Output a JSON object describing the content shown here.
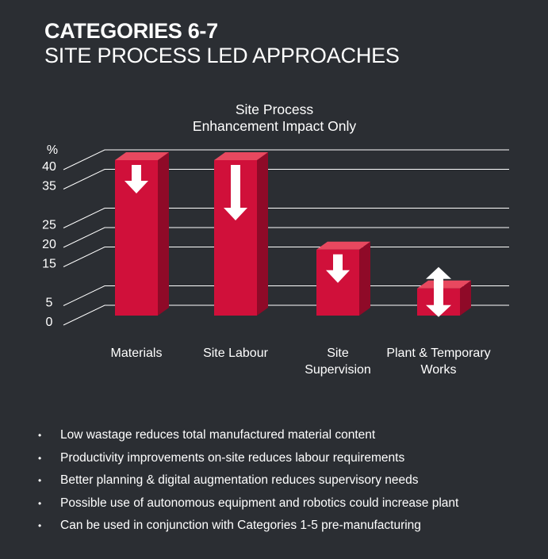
{
  "header": {
    "title": "CATEGORIES 6-7",
    "subtitle": "SITE PROCESS LED APPROACHES"
  },
  "chart_data": {
    "type": "bar",
    "title_lines": [
      "Site Process",
      "Enhancement Impact Only"
    ],
    "ylabel": "%",
    "yticks": [
      0,
      5,
      15,
      20,
      25,
      35,
      40
    ],
    "ylim": [
      0,
      45
    ],
    "grid": true,
    "categories": [
      [
        "Materials"
      ],
      [
        "Site Labour"
      ],
      [
        "Site",
        "Supervision"
      ],
      [
        "Plant & Temporary",
        "Works"
      ]
    ],
    "values": [
      40,
      40,
      17,
      7
    ],
    "arrows": [
      "down",
      "down",
      "down",
      "up-down"
    ],
    "colors": {
      "bar": "#d0103a",
      "bar_top": "#e8485f",
      "bar_side": "#8f0a28",
      "arrow": "#ffffff",
      "grid": "#ffffff"
    }
  },
  "bullets": [
    "Low wastage reduces total manufactured material content",
    "Productivity improvements on-site reduces labour requirements",
    "Better planning & digital augmentation reduces supervisory needs",
    "Possible use of autonomous equipment and robotics could increase plant",
    "Can be used in conjunction with Categories 1-5 pre-manufacturing"
  ],
  "bullet_symbol": "•"
}
